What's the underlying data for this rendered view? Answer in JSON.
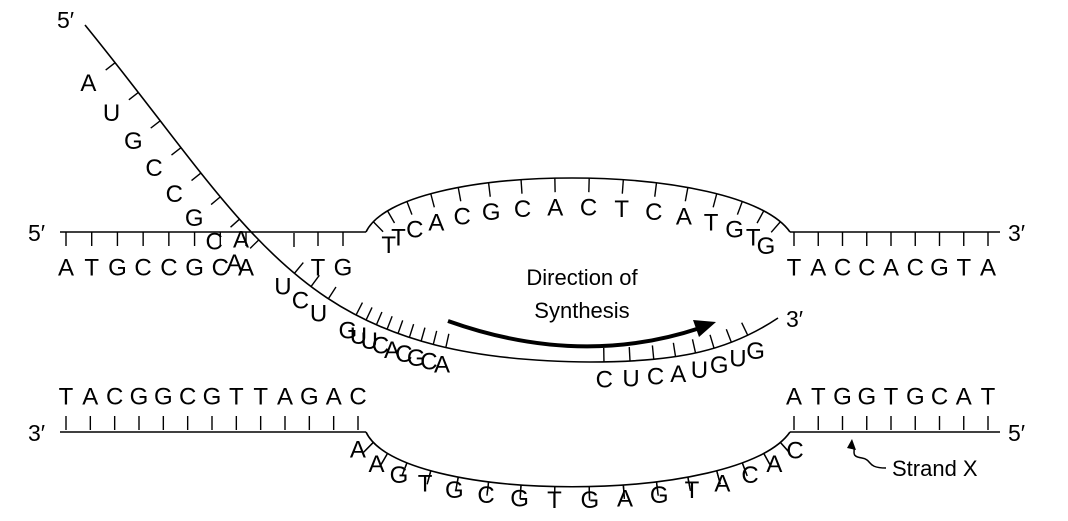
{
  "ends": {
    "rna_5": "5′",
    "rna_3": "3′",
    "top_5": "5′",
    "top_3": "3′",
    "bottom_3": "3′",
    "bottom_5": "5′"
  },
  "rna_tail": [
    "A",
    "U",
    "G",
    "C",
    "C",
    "G",
    "C",
    "A"
  ],
  "rna_bottom": [
    "U",
    "C",
    "U",
    "G",
    "U",
    "U",
    "C",
    "A",
    "C",
    "G",
    "C",
    "A",
    "C",
    "U",
    "C",
    "A",
    "U",
    "G",
    "U",
    "G"
  ],
  "rna_left_stub": "A",
  "top_left_seq": [
    "A",
    "T",
    "G",
    "C",
    "C",
    "G",
    "C",
    "A"
  ],
  "top_left_seq2": [
    "T",
    "G"
  ],
  "bubble_top": [
    "T",
    "T",
    "C",
    "A",
    "C",
    "G",
    "C",
    "A",
    "C",
    "T",
    "C",
    "A",
    "T",
    "G",
    "T",
    "G"
  ],
  "top_right_seq": [
    "T",
    "A",
    "C",
    "C",
    "A",
    "C",
    "G",
    "T",
    "A"
  ],
  "bottom_left_seq": [
    "T",
    "A",
    "C",
    "G",
    "G",
    "C",
    "G",
    "T",
    "T",
    "A",
    "G",
    "A",
    "C"
  ],
  "bubble_bottom": [
    "A",
    "A",
    "G",
    "T",
    "G",
    "C",
    "G",
    "T",
    "G",
    "A",
    "G",
    "T",
    "A",
    "C",
    "A",
    "C"
  ],
  "bottom_right_seq": [
    "A",
    "T",
    "G",
    "G",
    "T",
    "G",
    "C",
    "A",
    "T"
  ],
  "direction_label": [
    "Direction of",
    "Synthesis"
  ],
  "strand_label": "Strand X"
}
